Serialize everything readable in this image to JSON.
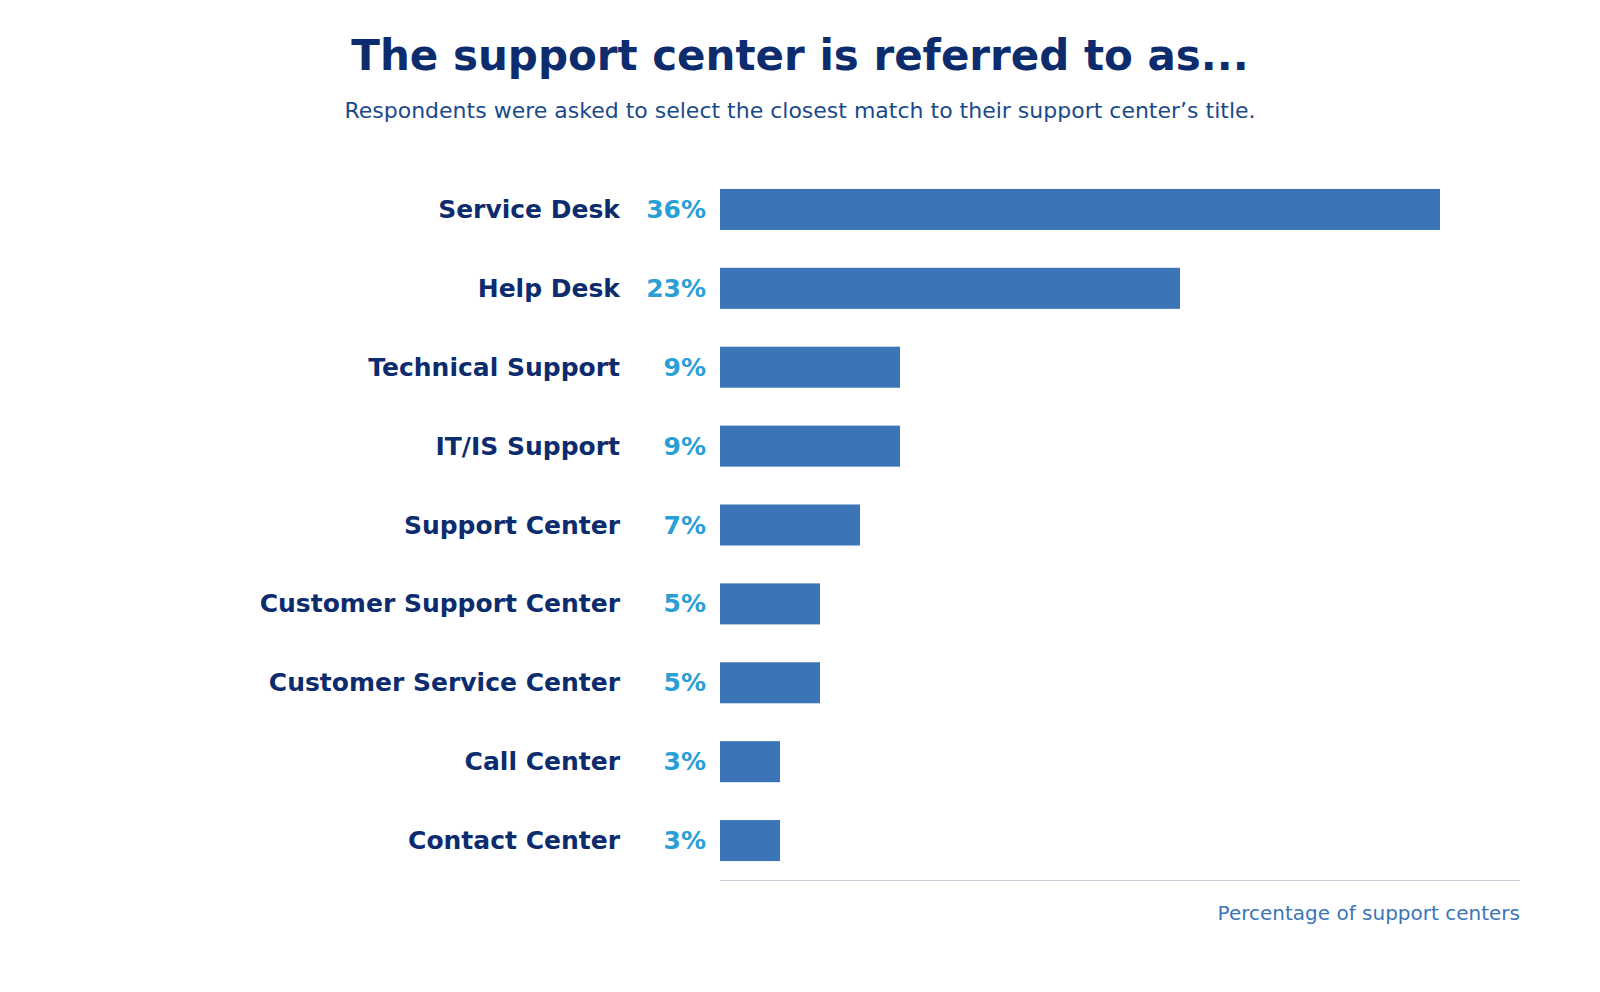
{
  "chart_data": {
    "type": "bar",
    "orientation": "horizontal",
    "title": "The support center is referred to as...",
    "subtitle": "Respondents were asked to select the closest match to their support center’s title.",
    "xlabel": "Percentage of support centers",
    "categories": [
      "Service Desk",
      "Help Desk",
      "Technical Support",
      "IT/IS Support",
      "Support Center",
      "Customer Support Center",
      "Customer Service Center",
      "Call Center",
      "Contact Center"
    ],
    "values": [
      36,
      23,
      9,
      9,
      7,
      5,
      5,
      3,
      3
    ],
    "value_labels": [
      "36%",
      "23%",
      "9%",
      "9%",
      "7%",
      "5%",
      "5%",
      "3%",
      "3%"
    ],
    "data_labels": true,
    "color": "#3B75B8",
    "xlim": [
      0,
      40
    ],
    "grid": false,
    "tick_labels": "y"
  }
}
